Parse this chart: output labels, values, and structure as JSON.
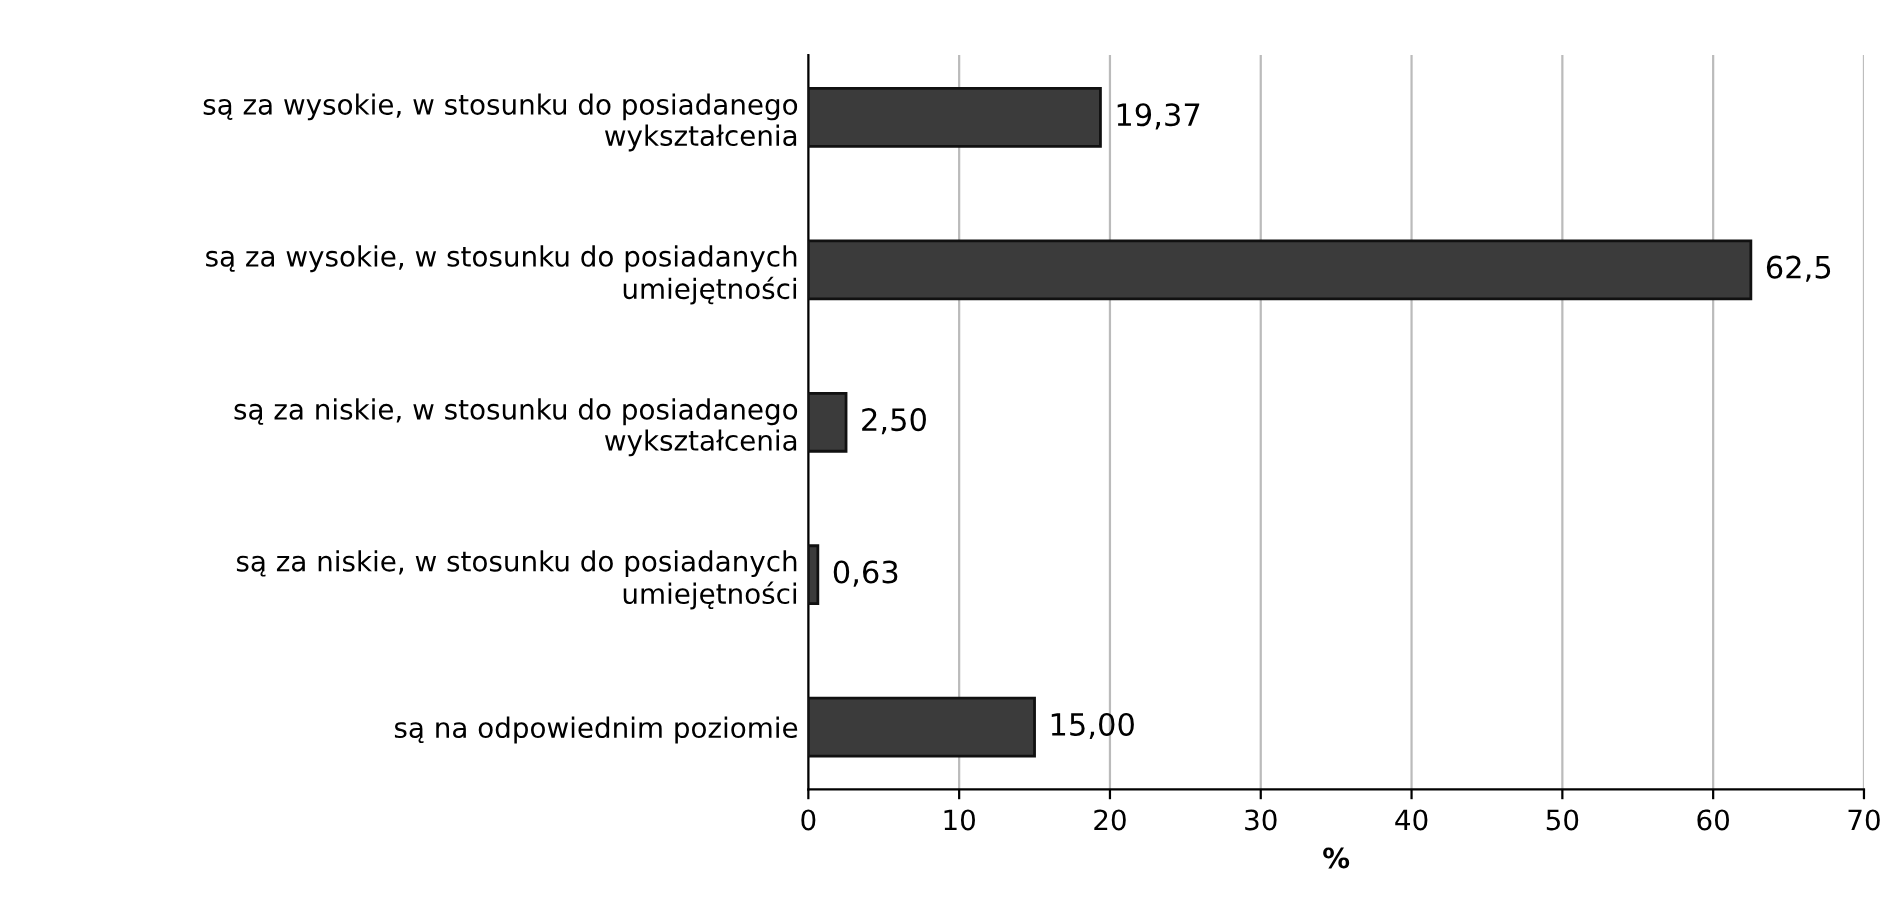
{
  "chart_data": {
    "type": "bar",
    "orientation": "horizontal",
    "categories": [
      "są za wysokie, w stosunku do posiadanego\nwykształcenia",
      "są za wysokie, w stosunku do posiadanych\numiejętności",
      "są za niskie, w stosunku do posiadanego\nwykształcenia",
      "są za niskie, w stosunku do posiadanych\numiejętności",
      "są na odpowiednim poziomie"
    ],
    "values": [
      19.37,
      62.5,
      2.5,
      0.63,
      15.0
    ],
    "value_labels": [
      "19,37",
      "62,5",
      "2,50",
      "0,63",
      "15,00"
    ],
    "color": "#3b3b3b",
    "xlim": [
      0,
      70
    ],
    "xticks": [
      0,
      10,
      20,
      30,
      40,
      50,
      60,
      70
    ],
    "xlabel": "%",
    "grid": "x"
  }
}
